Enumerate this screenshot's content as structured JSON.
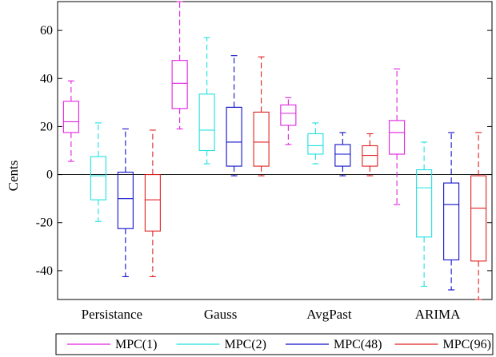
{
  "chart_data": {
    "type": "boxplot",
    "ylabel": "Cents",
    "ylim": [
      -52,
      72
    ],
    "yticks": [
      -40,
      -20,
      0,
      20,
      40,
      60
    ],
    "grid": false,
    "zero_line": true,
    "legend_position": "bottom",
    "categories": [
      "Persistance",
      "Gauss",
      "AvgPast",
      "ARIMA"
    ],
    "series": [
      {
        "name": "MPC(1)",
        "color": "#e020e0",
        "boxes": [
          {
            "min": 5.5,
            "q1": 17.5,
            "median": 22,
            "q3": 30.5,
            "max": 39
          },
          {
            "min": 19,
            "q1": 27.5,
            "median": 38,
            "q3": 47.5,
            "max": 72
          },
          {
            "min": 12.5,
            "q1": 20.5,
            "median": 25.5,
            "q3": 29,
            "max": 32
          },
          {
            "min": -12.5,
            "q1": 8.5,
            "median": 17.5,
            "q3": 22.5,
            "max": 44
          }
        ]
      },
      {
        "name": "MPC(2)",
        "color": "#20e0e0",
        "boxes": [
          {
            "min": -19.5,
            "q1": -10.5,
            "median": -0.5,
            "q3": 7.5,
            "max": 21.5
          },
          {
            "min": 4.5,
            "q1": 10,
            "median": 18.5,
            "q3": 33.5,
            "max": 57
          },
          {
            "min": 4.5,
            "q1": 8.5,
            "median": 12,
            "q3": 17,
            "max": 21.5
          },
          {
            "min": -46.5,
            "q1": -26,
            "median": -5.5,
            "q3": 2,
            "max": 13.5
          }
        ]
      },
      {
        "name": "MPC(48)",
        "color": "#1010c8",
        "boxes": [
          {
            "min": -42.5,
            "q1": -22.5,
            "median": -10,
            "q3": 1,
            "max": 19
          },
          {
            "min": -0.5,
            "q1": 3.5,
            "median": 13.5,
            "q3": 28,
            "max": 49.5
          },
          {
            "min": -0.5,
            "q1": 3.5,
            "median": 8.5,
            "q3": 12.5,
            "max": 17.5
          },
          {
            "min": -48,
            "q1": -35.5,
            "median": -12.5,
            "q3": -3.5,
            "max": 17.5
          }
        ]
      },
      {
        "name": "MPC(96)",
        "color": "#e02020",
        "boxes": [
          {
            "min": -42.5,
            "q1": -23.5,
            "median": -10.5,
            "q3": 0,
            "max": 18.5
          },
          {
            "min": -0.5,
            "q1": 3.5,
            "median": 13.5,
            "q3": 26,
            "max": 49
          },
          {
            "min": -0.5,
            "q1": 3.5,
            "median": 8,
            "q3": 12,
            "max": 17
          },
          {
            "min": -52,
            "q1": -36,
            "median": -14,
            "q3": -0.5,
            "max": 17.5
          }
        ]
      }
    ]
  }
}
